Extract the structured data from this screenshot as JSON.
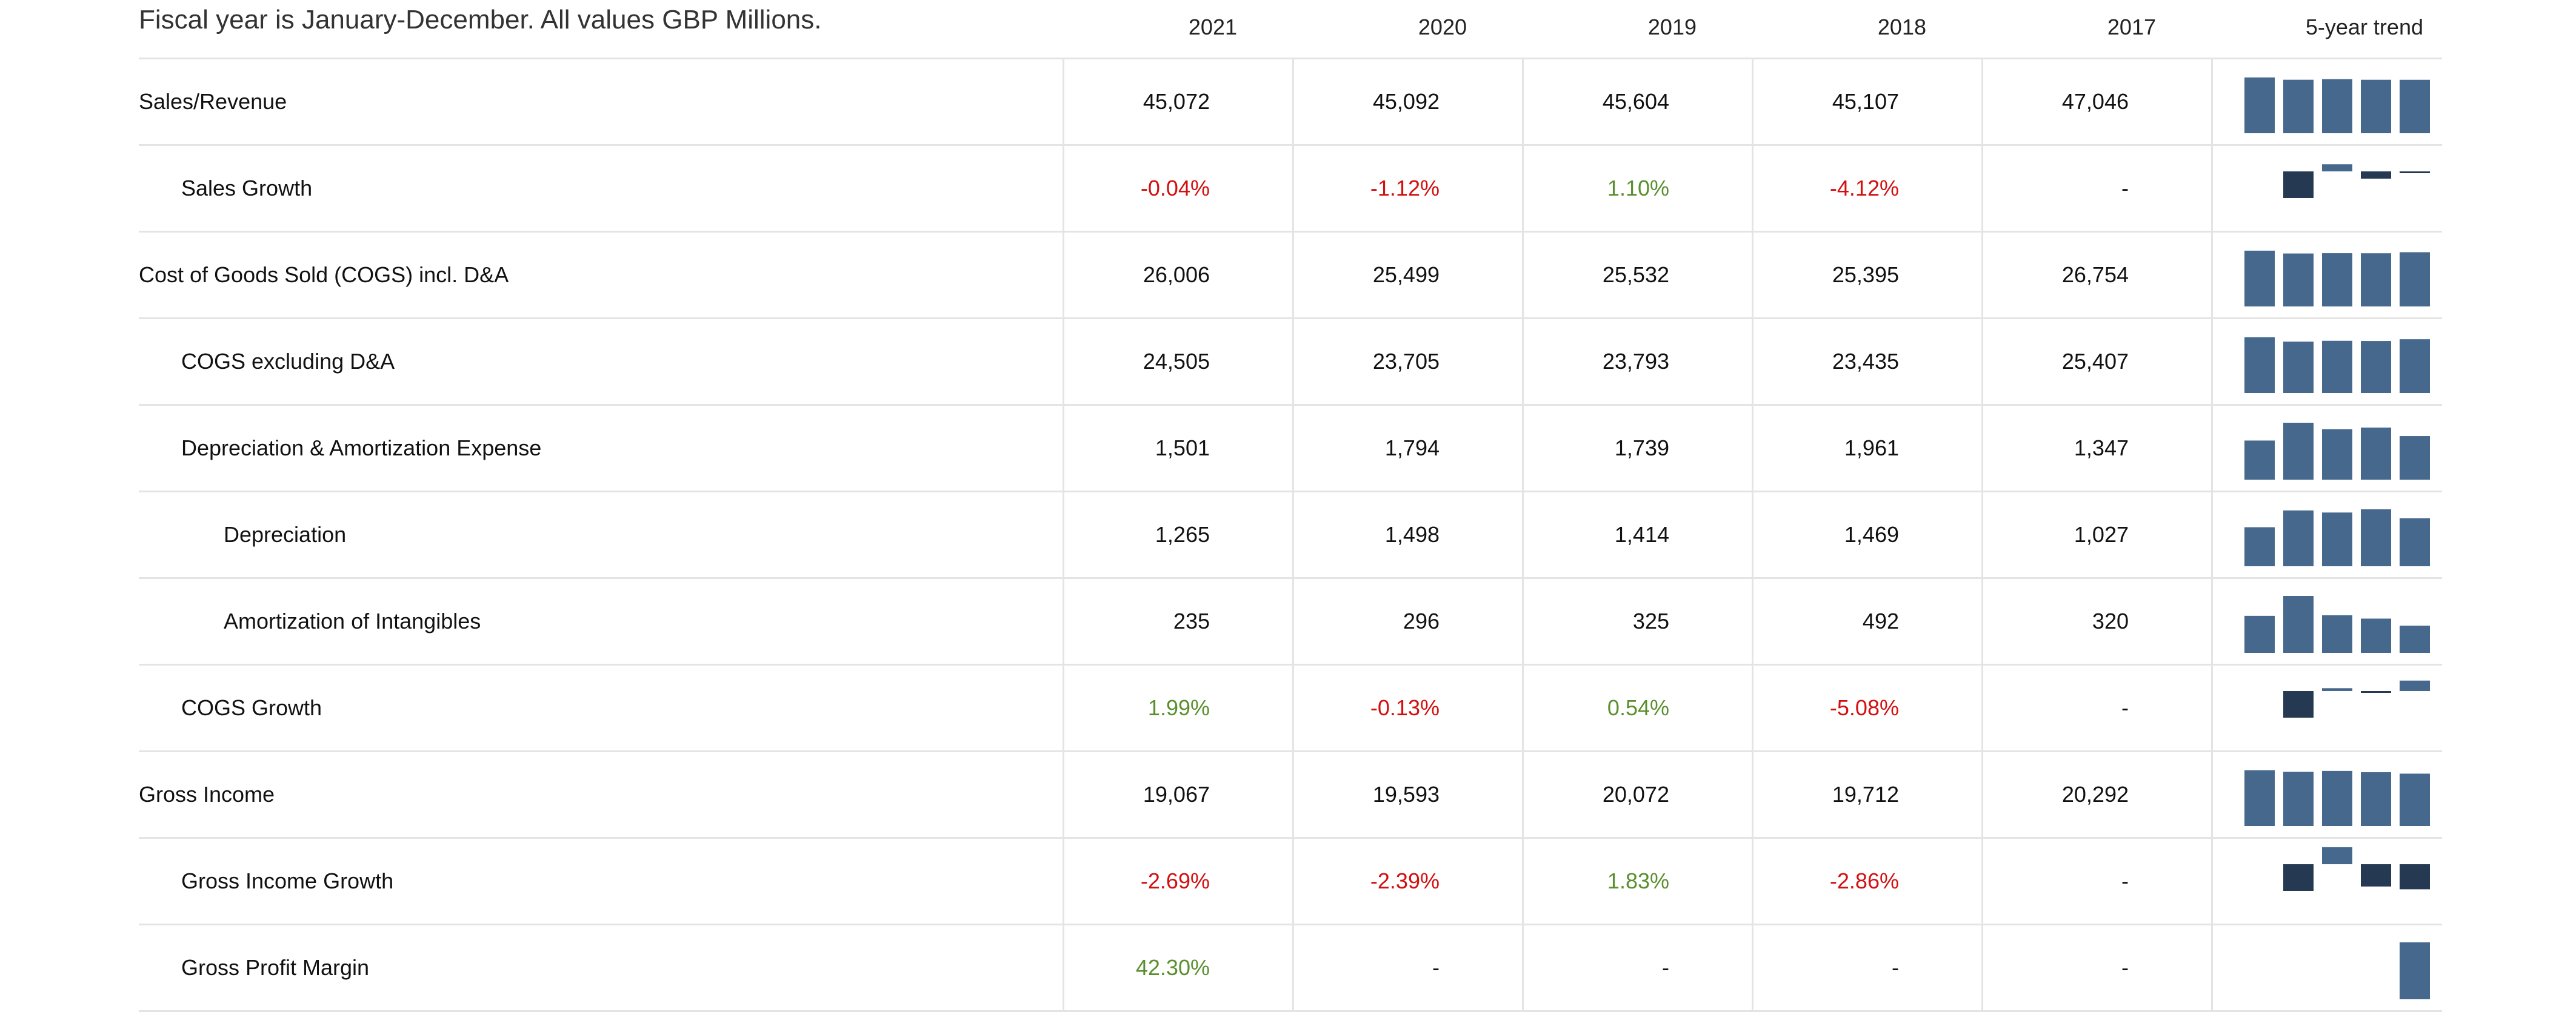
{
  "caption": "Fiscal year is January-December. All values GBP Millions.",
  "years": [
    "2021",
    "2020",
    "2019",
    "2018",
    "2017"
  ],
  "trend_label": "5-year trend",
  "colors": {
    "bar": "#46688c",
    "bar_dark": "#253a52",
    "negative": "#d30f0f",
    "positive": "#5a8f2e"
  },
  "rows": [
    {
      "label": "Sales/Revenue",
      "indent": 0,
      "values": [
        "45,072",
        "45,092",
        "45,604",
        "45,107",
        "47,046"
      ],
      "tones": [
        "",
        "",
        "",
        "",
        ""
      ],
      "trend": [
        47046,
        45107,
        45604,
        45092,
        45072
      ],
      "trend_type": "level"
    },
    {
      "label": "Sales Growth",
      "indent": 1,
      "values": [
        "-0.04%",
        "-1.12%",
        "1.10%",
        "-4.12%",
        "-"
      ],
      "tones": [
        "neg",
        "neg",
        "pos",
        "neg",
        ""
      ],
      "trend": [
        null,
        -4.12,
        1.1,
        -1.12,
        -0.04
      ],
      "trend_type": "growth"
    },
    {
      "label": "Cost of Goods Sold (COGS) incl. D&A",
      "indent": 0,
      "values": [
        "26,006",
        "25,499",
        "25,532",
        "25,395",
        "26,754"
      ],
      "tones": [
        "",
        "",
        "",
        "",
        ""
      ],
      "trend": [
        26754,
        25395,
        25532,
        25499,
        26006
      ],
      "trend_type": "level"
    },
    {
      "label": "COGS excluding D&A",
      "indent": 1,
      "values": [
        "24,505",
        "23,705",
        "23,793",
        "23,435",
        "25,407"
      ],
      "tones": [
        "",
        "",
        "",
        "",
        ""
      ],
      "trend": [
        25407,
        23435,
        23793,
        23705,
        24505
      ],
      "trend_type": "level"
    },
    {
      "label": "Depreciation & Amortization Expense",
      "indent": 1,
      "values": [
        "1,501",
        "1,794",
        "1,739",
        "1,961",
        "1,347"
      ],
      "tones": [
        "",
        "",
        "",
        "",
        ""
      ],
      "trend": [
        1347,
        1961,
        1739,
        1794,
        1501
      ],
      "trend_type": "level"
    },
    {
      "label": "Depreciation",
      "indent": 2,
      "values": [
        "1,265",
        "1,498",
        "1,414",
        "1,469",
        "1,027"
      ],
      "tones": [
        "",
        "",
        "",
        "",
        ""
      ],
      "trend": [
        1027,
        1469,
        1414,
        1498,
        1265
      ],
      "trend_type": "level"
    },
    {
      "label": "Amortization of Intangibles",
      "indent": 2,
      "values": [
        "235",
        "296",
        "325",
        "492",
        "320"
      ],
      "tones": [
        "",
        "",
        "",
        "",
        ""
      ],
      "trend": [
        320,
        492,
        325,
        296,
        235
      ],
      "trend_type": "level"
    },
    {
      "label": "COGS Growth",
      "indent": 1,
      "values": [
        "1.99%",
        "-0.13%",
        "0.54%",
        "-5.08%",
        "-"
      ],
      "tones": [
        "pos",
        "neg",
        "pos",
        "neg",
        ""
      ],
      "trend": [
        null,
        -5.08,
        0.54,
        -0.13,
        1.99
      ],
      "trend_type": "growth"
    },
    {
      "label": "Gross Income",
      "indent": 0,
      "values": [
        "19,067",
        "19,593",
        "20,072",
        "19,712",
        "20,292"
      ],
      "tones": [
        "",
        "",
        "",
        "",
        ""
      ],
      "trend": [
        20292,
        19712,
        20072,
        19593,
        19067
      ],
      "trend_type": "level"
    },
    {
      "label": "Gross Income Growth",
      "indent": 1,
      "values": [
        "-2.69%",
        "-2.39%",
        "1.83%",
        "-2.86%",
        "-"
      ],
      "tones": [
        "neg",
        "neg",
        "pos",
        "neg",
        ""
      ],
      "trend": [
        null,
        -2.86,
        1.83,
        -2.39,
        -2.69
      ],
      "trend_type": "growth"
    },
    {
      "label": "Gross Profit Margin",
      "indent": 1,
      "values": [
        "42.30%",
        "-",
        "-",
        "-",
        "-"
      ],
      "tones": [
        "pos",
        "",
        "",
        "",
        ""
      ],
      "trend": [
        null,
        null,
        null,
        null,
        42.3
      ],
      "trend_type": "level"
    }
  ]
}
